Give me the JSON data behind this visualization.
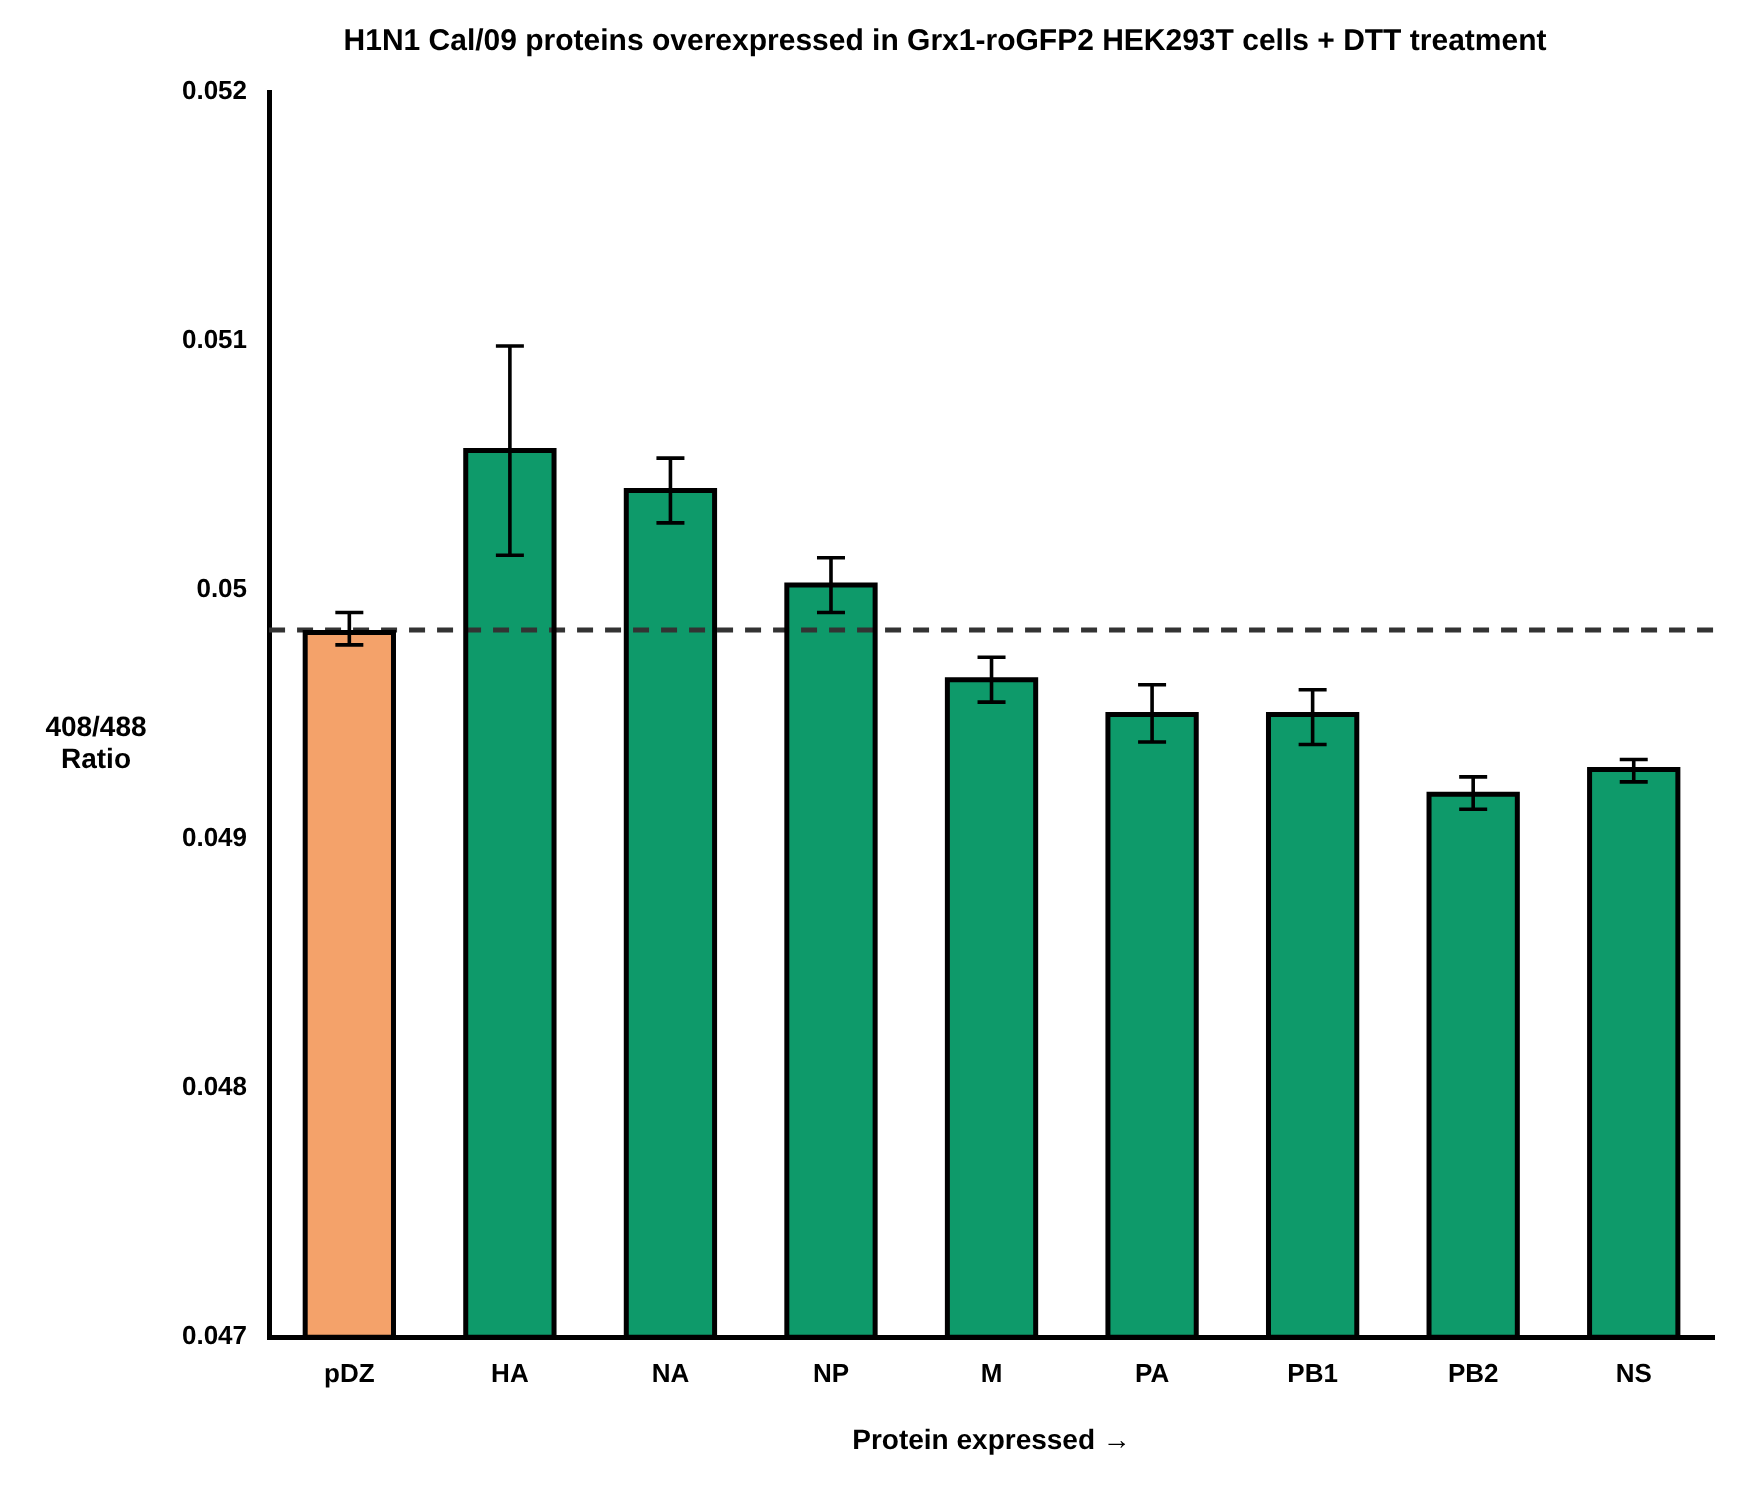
{
  "chart_data": {
    "type": "bar",
    "title": "H1N1 Cal/09 proteins overexpressed in Grx1-roGFP2 HEK293T cells + DTT treatment",
    "xlabel": "Protein expressed →",
    "ylabel": "408/488 Ratio",
    "categories": [
      "pDZ",
      "HA",
      "NA",
      "NP",
      "M",
      "PA",
      "PB1",
      "PB2",
      "NS"
    ],
    "values": [
      0.04983,
      0.05056,
      0.0504,
      0.05002,
      0.04964,
      0.0495,
      0.0495,
      0.04918,
      0.04928
    ],
    "colors": [
      "#f4a26a",
      "#0e9a6a",
      "#0e9a6a",
      "#0e9a6a",
      "#0e9a6a",
      "#0e9a6a",
      "#0e9a6a",
      "#0e9a6a",
      "#0e9a6a"
    ],
    "errors": [
      [
        0.04978,
        0.04991
      ],
      [
        0.05014,
        0.05098
      ],
      [
        0.05027,
        0.05053
      ],
      [
        0.04991,
        0.05013
      ],
      [
        0.04955,
        0.04973
      ],
      [
        0.04939,
        0.04962
      ],
      [
        0.04938,
        0.0496
      ],
      [
        0.04912,
        0.04925
      ],
      [
        0.04923,
        0.04932
      ]
    ],
    "ylim": [
      0.047,
      0.052
    ],
    "yticks": [
      0.047,
      0.048,
      0.049,
      0.05,
      0.051,
      0.052
    ],
    "ref_lines": [
      {
        "axis": "y",
        "value": 0.04984,
        "line_style": "dashed",
        "color": "#333333"
      }
    ],
    "grid": false,
    "legend": false
  }
}
